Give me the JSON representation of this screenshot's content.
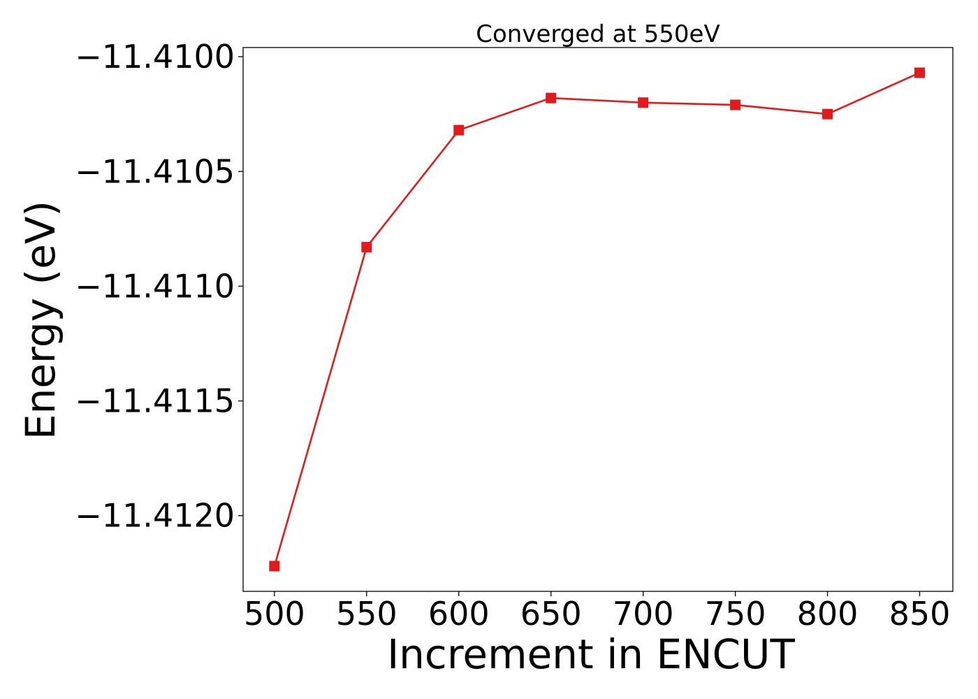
{
  "chart_data": {
    "type": "line",
    "title": "Converged at 550eV",
    "xlabel": "Increment in ENCUT",
    "ylabel": "Energy (eV)",
    "x": [
      500,
      550,
      600,
      650,
      700,
      750,
      800,
      850
    ],
    "series": [
      {
        "values": [
          -11.41222,
          -11.41083,
          -11.41032,
          -11.41018,
          -11.4102,
          -11.41021,
          -11.41025,
          -11.41007
        ],
        "color": "#e31a1c",
        "marker": "square"
      }
    ],
    "xticks": [
      500,
      550,
      600,
      650,
      700,
      750,
      800,
      850
    ],
    "xtick_labels": [
      "500",
      "550",
      "600",
      "650",
      "700",
      "750",
      "800",
      "850"
    ],
    "yticks": [
      -11.412,
      -11.4115,
      -11.411,
      -11.4105,
      -11.41
    ],
    "ytick_labels": [
      "−11.4120",
      "−11.4115",
      "−11.4110",
      "−11.4105",
      "−11.4100"
    ],
    "xlim": [
      483,
      868
    ],
    "ylim": [
      -11.41233,
      -11.40996
    ],
    "grid": false,
    "legend": "none"
  }
}
